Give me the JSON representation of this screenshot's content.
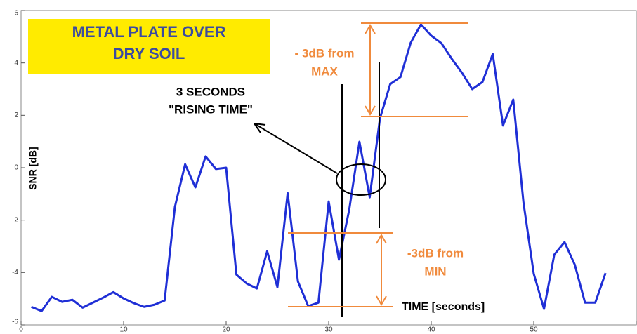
{
  "chart_data": {
    "type": "line",
    "title": [
      "METAL PLATE OVER",
      "DRY SOIL"
    ],
    "x_label": "TIME [seconds]",
    "y_label": "SNR [dB]",
    "x": [
      1,
      2,
      3,
      4,
      5,
      6,
      7,
      8,
      9,
      10,
      11,
      12,
      13,
      14,
      15,
      16,
      17,
      18,
      19,
      20,
      21,
      22,
      23,
      24,
      25,
      26,
      27,
      28,
      29,
      30,
      31,
      32,
      33,
      34,
      35,
      36,
      37,
      38,
      39,
      40,
      41,
      42,
      43,
      44,
      45,
      46,
      47,
      48,
      49,
      50,
      51,
      52,
      53,
      54,
      55,
      56,
      57
    ],
    "series": [
      {
        "color": "#1f2fd6",
        "values": [
          -5.31,
          -5.47,
          -4.93,
          -5.12,
          -5.04,
          -5.34,
          -5.15,
          -4.96,
          -4.75,
          -4.99,
          -5.17,
          -5.31,
          -5.23,
          -5.07,
          -1.5,
          0.13,
          -0.75,
          0.43,
          -0.05,
          0,
          -4.08,
          -4.42,
          -4.61,
          -3.19,
          -4.56,
          -0.97,
          -4.34,
          -5.28,
          -5.15,
          -1.29,
          -3.51,
          -1.61,
          0.99,
          -1.13,
          1.88,
          3.19,
          3.46,
          4.77,
          5.47,
          5.04,
          4.75,
          4.16,
          3.62,
          3.0,
          3.27,
          4.34,
          1.61,
          2.6,
          -1.34,
          -4.05,
          -5.39,
          -3.32,
          -2.84,
          -3.7,
          -5.15,
          -5.15,
          -4.02
        ]
      }
    ],
    "xlim": [
      0,
      60
    ],
    "xticks": [
      0,
      10,
      20,
      30,
      40,
      50,
      60
    ],
    "ylim": [
      -6,
      6
    ],
    "yticks": [
      -6,
      -4,
      -2,
      0,
      2,
      4,
      6
    ],
    "annotations": {
      "rising": [
        "3 SECONDS",
        "\"RISING TIME\""
      ],
      "max": [
        "- 3dB from",
        "MAX"
      ],
      "min": [
        "-3dB from",
        "MIN"
      ]
    }
  }
}
